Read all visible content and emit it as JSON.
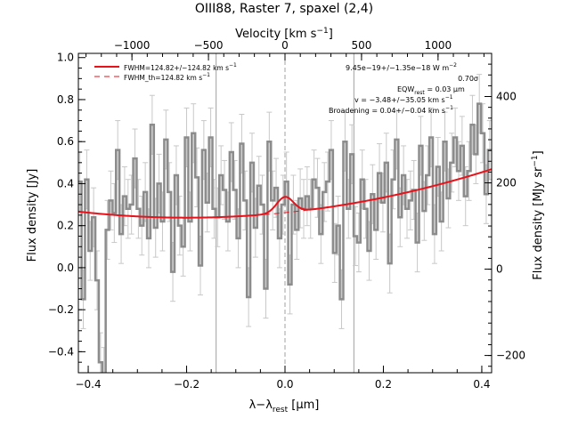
{
  "chart_data": {
    "type": "line",
    "title": "OIII88, Raster 7, spaxel (2,4)",
    "xlabel": "λ−λ",
    "xlabel_sub": "rest",
    "xlabel_unit": " [μm]",
    "ylabel": "Flux density [Jy]",
    "y2label": "Flux density [MJy sr",
    "y2label_sup": "−1",
    "y2label_end": "]",
    "top_xlabel": "Velocity [km s",
    "top_xlabel_sup": "−1",
    "top_xlabel_end": "]",
    "xlim": [
      -0.42,
      0.42
    ],
    "ylim": [
      -0.5,
      1.02
    ],
    "y2lim": [
      -240,
      500
    ],
    "velocity_lim": [
      -1350,
      1350
    ],
    "grid": false,
    "legend_position": "top-left",
    "x_ticks": [
      -0.4,
      -0.2,
      0.0,
      0.2,
      0.4
    ],
    "x_tick_labels": [
      "−0.4",
      "−0.2",
      "0.0",
      "0.2",
      "0.4"
    ],
    "y_ticks": [
      -0.4,
      -0.2,
      0.0,
      0.2,
      0.4,
      0.6,
      0.8,
      1.0
    ],
    "y_tick_labels": [
      "−0.4",
      "−0.2",
      "0.0",
      "0.2",
      "0.4",
      "0.6",
      "0.8",
      "1.0"
    ],
    "y2_ticks": [
      -200,
      0,
      200,
      400
    ],
    "y2_tick_labels": [
      "−200",
      "0",
      "200",
      "400"
    ],
    "top_ticks": [
      -1000,
      -500,
      0,
      500,
      1000
    ],
    "top_tick_labels": [
      "−1000",
      "−500",
      "0",
      "500",
      "1000"
    ],
    "vertical_markers": [
      -0.14,
      0.0,
      0.14
    ],
    "series": [
      {
        "name": "",
        "kind": "histogram",
        "color": "#8c8c8c",
        "x": [
          -0.417,
          -0.41,
          -0.403,
          -0.396,
          -0.389,
          -0.382,
          -0.375,
          -0.368,
          -0.361,
          -0.354,
          -0.347,
          -0.34,
          -0.333,
          -0.326,
          -0.319,
          -0.312,
          -0.305,
          -0.298,
          -0.291,
          -0.284,
          -0.277,
          -0.27,
          -0.263,
          -0.256,
          -0.249,
          -0.242,
          -0.235,
          -0.228,
          -0.221,
          -0.214,
          -0.207,
          -0.2,
          -0.193,
          -0.186,
          -0.179,
          -0.172,
          -0.165,
          -0.158,
          -0.151,
          -0.144,
          -0.137,
          -0.13,
          -0.123,
          -0.116,
          -0.109,
          -0.102,
          -0.095,
          -0.088,
          -0.081,
          -0.074,
          -0.067,
          -0.06,
          -0.053,
          -0.046,
          -0.039,
          -0.032,
          -0.025,
          -0.018,
          -0.011,
          -0.004,
          0.003,
          0.01,
          0.017,
          0.024,
          0.031,
          0.038,
          0.045,
          0.052,
          0.059,
          0.066,
          0.073,
          0.08,
          0.087,
          0.094,
          0.101,
          0.108,
          0.115,
          0.122,
          0.129,
          0.136,
          0.143,
          0.15,
          0.157,
          0.164,
          0.171,
          0.178,
          0.185,
          0.192,
          0.199,
          0.206,
          0.213,
          0.22,
          0.227,
          0.234,
          0.241,
          0.248,
          0.255,
          0.262,
          0.269,
          0.276,
          0.283,
          0.29,
          0.297,
          0.304,
          0.311,
          0.318,
          0.325,
          0.332,
          0.339,
          0.346,
          0.353,
          0.36,
          0.367,
          0.374,
          0.381,
          0.388,
          0.395,
          0.402,
          0.409,
          0.416
        ],
        "y": [
          0.41,
          -0.15,
          0.42,
          0.08,
          0.24,
          -0.06,
          -0.45,
          -0.52,
          0.18,
          0.32,
          0.26,
          0.56,
          0.16,
          0.34,
          0.28,
          0.3,
          0.52,
          0.28,
          0.2,
          0.36,
          0.14,
          0.68,
          0.19,
          0.4,
          0.22,
          0.61,
          0.36,
          -0.02,
          0.44,
          0.2,
          0.1,
          0.62,
          0.22,
          0.64,
          0.43,
          0.01,
          0.56,
          0.31,
          0.62,
          0.28,
          0.24,
          0.44,
          0.37,
          0.22,
          0.55,
          0.37,
          0.14,
          0.59,
          0.32,
          -0.14,
          0.5,
          0.19,
          0.39,
          0.3,
          -0.1,
          0.6,
          0.32,
          0.38,
          0.14,
          0.3,
          0.41,
          -0.08,
          0.3,
          0.18,
          0.33,
          0.28,
          0.34,
          0.28,
          0.42,
          0.38,
          0.16,
          0.36,
          0.41,
          0.56,
          0.07,
          0.2,
          -0.15,
          0.6,
          0.28,
          0.54,
          0.15,
          0.12,
          0.42,
          0.28,
          0.08,
          0.35,
          0.18,
          0.45,
          0.31,
          0.5,
          0.02,
          0.42,
          0.61,
          0.24,
          0.44,
          0.28,
          0.32,
          0.37,
          0.12,
          0.58,
          0.27,
          0.44,
          0.62,
          0.16,
          0.48,
          0.22,
          0.6,
          0.33,
          0.5,
          0.62,
          0.46,
          0.58,
          0.34,
          0.46,
          0.68,
          0.54,
          0.78,
          0.64,
          0.35,
          0.56
        ],
        "errors": 0.14
      },
      {
        "name": "FWHM=124.82+/−124.82 km s",
        "name_sup": "−1",
        "kind": "line",
        "color": "#e8121b",
        "style": "solid",
        "model": {
          "a": 0.238,
          "center": -0.2,
          "curvature": 1.2,
          "gauss_amp": 0.075,
          "gauss_sigma": 0.017
        },
        "x_range": [
          -0.42,
          0.42
        ]
      },
      {
        "name": "FWHM_th=124.82 km s",
        "name_sup": "−1",
        "kind": "line",
        "color": "#e8121b",
        "style": "dashed",
        "model": {
          "a": 0.238,
          "center": -0.2,
          "curvature": 1.2,
          "gauss_amp": 0.0,
          "gauss_sigma": 0.017
        },
        "x_range": [
          -0.42,
          0.42
        ]
      }
    ],
    "annotations": [
      "9.45e−19+/−1.35e−18 W m",
      "0.70σ",
      "EQW",
      "= 0.03 μm",
      "v = −3.48+/−35.05 km s",
      "Broadening = 0.04+/−0.04 km s"
    ],
    "annotation_sups": [
      "−2",
      "−1",
      "−1"
    ],
    "annotation_sub": "rest"
  }
}
